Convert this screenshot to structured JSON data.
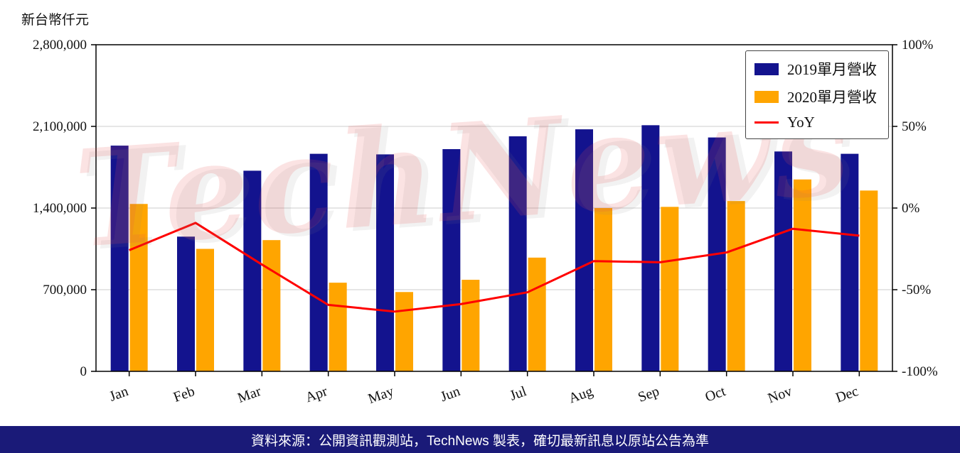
{
  "watermark": {
    "text": "TechNews"
  },
  "footer": {
    "text": "資料來源：公開資訊觀測站，TechNews 製表，確切最新訊息以原站公告為準",
    "background": "#1a1a78",
    "text_color": "#ffffff"
  },
  "chart_data": {
    "type": "bar+line",
    "title": "",
    "categories": [
      "Jan",
      "Feb",
      "Mar",
      "Apr",
      "May",
      "Jun",
      "Jul",
      "Aug",
      "Sep",
      "Oct",
      "Nov",
      "Dec"
    ],
    "series": [
      {
        "name": "2019單月營收",
        "type": "bar",
        "axis": "left",
        "color": "#13138e",
        "values": [
          1935000,
          1155000,
          1720000,
          1865000,
          1860000,
          1905000,
          2015000,
          2075000,
          2110000,
          2005000,
          1885000,
          1865000
        ]
      },
      {
        "name": "2020單月營收",
        "type": "bar",
        "axis": "left",
        "color": "#ffa500",
        "values": [
          1435000,
          1050000,
          1125000,
          760000,
          680000,
          785000,
          975000,
          1400000,
          1410000,
          1460000,
          1645000,
          1550000
        ]
      },
      {
        "name": "YoY",
        "type": "line",
        "axis": "right",
        "color": "#ff0000",
        "values": [
          -25.8,
          -9.1,
          -34.6,
          -59.3,
          -63.4,
          -58.8,
          -51.6,
          -32.5,
          -33.2,
          -27.2,
          -12.7,
          -16.9
        ]
      }
    ],
    "left_axis": {
      "unit_label": "新台幣仟元",
      "min": 0,
      "max": 2800000,
      "ticks": [
        0,
        700000,
        1400000,
        2100000,
        2800000
      ]
    },
    "right_axis": {
      "min": -100,
      "max": 100,
      "ticks": [
        -100,
        -50,
        0,
        50,
        100
      ],
      "suffix": "%"
    },
    "grid": true,
    "legend_position": "top-right"
  }
}
